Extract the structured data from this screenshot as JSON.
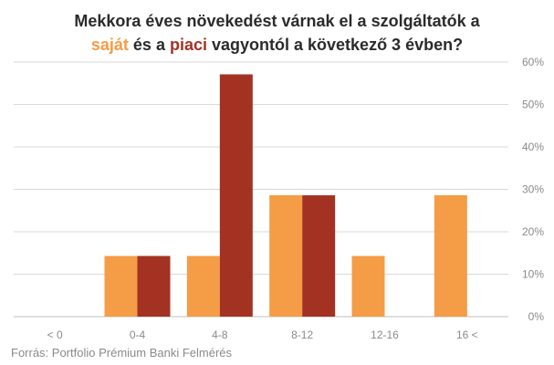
{
  "title": {
    "line1": "Mekkora éves növekedést várnak el a szolgáltatók a",
    "line2_own": "saját",
    "line2_mid": " és a ",
    "line2_market": "piaci",
    "line2_end": " vagyontól a következő 3 évben?"
  },
  "source": "Forrás: Portfolio Prémium Banki Felmérés",
  "colors": {
    "own": "#f59c47",
    "market": "#a33223",
    "grid": "#d9d9d9",
    "text": "#8a8a8a"
  },
  "chart_data": {
    "type": "bar",
    "title": "Mekkora éves növekedést várnak el a szolgáltatók a saját és a piaci vagyontól a következő 3 évben?",
    "categories": [
      "< 0",
      "0-4",
      "4-8",
      "8-12",
      "12-16",
      "16 <"
    ],
    "series": [
      {
        "name": "saját",
        "color": "#f59c47",
        "values": [
          0,
          14.3,
          14.3,
          28.6,
          14.3,
          28.6
        ]
      },
      {
        "name": "piaci",
        "color": "#a33223",
        "values": [
          0,
          14.3,
          57.1,
          28.6,
          0,
          0
        ]
      }
    ],
    "y_ticks": [
      "0%",
      "10%",
      "20%",
      "30%",
      "40%",
      "50%",
      "60%"
    ],
    "ylim": [
      0,
      60
    ],
    "ylabel": "",
    "xlabel": "",
    "grid": true
  }
}
